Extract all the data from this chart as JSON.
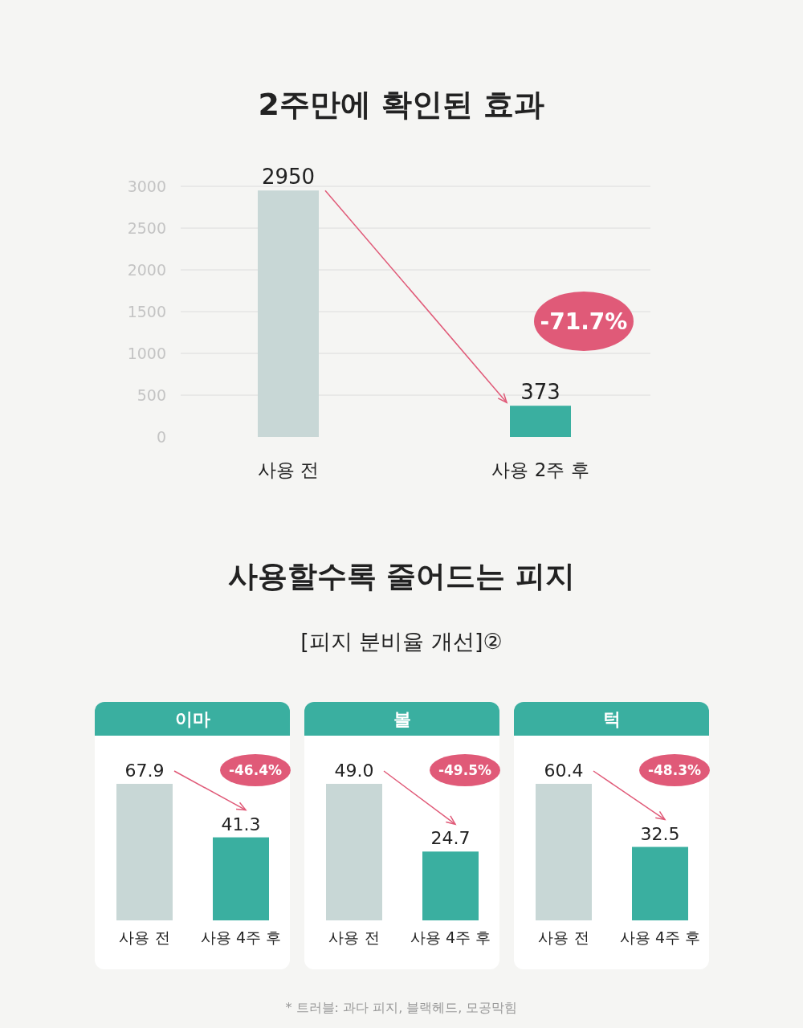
{
  "chart_data": [
    {
      "type": "bar",
      "title": "2주만에 확인된 효과",
      "categories": [
        "사용 전",
        "사용 2주 후"
      ],
      "values": [
        2950,
        373
      ],
      "colors": [
        "#c8d7d6",
        "#3aafa0"
      ],
      "ylim": [
        0,
        3000
      ],
      "yticks": [
        0,
        500,
        1000,
        1500,
        2000,
        2500,
        3000
      ],
      "grid": "y",
      "data_labels": true,
      "annotations": [
        "-71.7%"
      ]
    },
    {
      "type": "other",
      "title": "사용할수록 줄어드는 피지",
      "subtitle": "[피지 분비율 개선]②"
    },
    {
      "type": "bar",
      "title": "이마",
      "categories": [
        "사용 전",
        "사용 4주 후"
      ],
      "values": [
        67.9,
        41.3
      ],
      "colors": [
        "#c8d7d6",
        "#3aafa0"
      ],
      "data_labels": true,
      "annotations": [
        "-46.4%"
      ]
    },
    {
      "type": "bar",
      "title": "볼",
      "categories": [
        "사용 전",
        "사용 4주 후"
      ],
      "values": [
        49.0,
        24.7
      ],
      "value_labels": [
        "49.0",
        "24.7"
      ],
      "colors": [
        "#c8d7d6",
        "#3aafa0"
      ],
      "annotations": [
        "-49.5%"
      ]
    },
    {
      "type": "bar",
      "title": "턱",
      "categories": [
        "사용 전",
        "사용 4주 후"
      ],
      "values": [
        60.4,
        32.5
      ],
      "value_labels": [
        "60.4",
        "32.5"
      ],
      "colors": [
        "#c8d7d6",
        "#3aafa0"
      ],
      "annotations": [
        "-48.3%"
      ]
    },
    {
      "type": "other",
      "annotations": [
        "* 트러블: 과다 피지, 블랙헤드, 모공막힘"
      ]
    }
  ]
}
